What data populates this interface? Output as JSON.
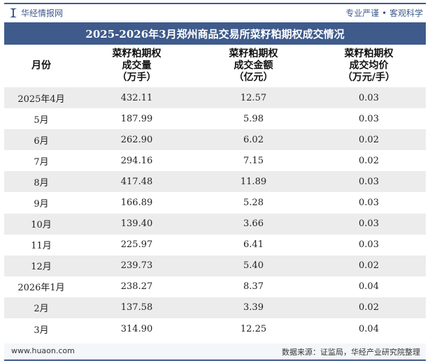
{
  "header": {
    "brand": "华经情报网",
    "slogan": "专业严谨 • 客观科学"
  },
  "chart_data": {
    "type": "table",
    "title": "2025-2026年3月郑州商品交易所菜籽粕期权成交情况",
    "columns": [
      "月份",
      "菜籽粕期权\n成交量\n（万手）",
      "菜籽粕期权\n成交金额\n（亿元）",
      "菜籽粕期权\n成交均价\n（万元/手）"
    ],
    "rows": [
      [
        "2025年4月",
        "432.11",
        "12.57",
        "0.03"
      ],
      [
        "5月",
        "187.99",
        "5.98",
        "0.03"
      ],
      [
        "6月",
        "262.90",
        "6.02",
        "0.02"
      ],
      [
        "7月",
        "294.16",
        "7.15",
        "0.02"
      ],
      [
        "8月",
        "417.48",
        "11.89",
        "0.03"
      ],
      [
        "9月",
        "166.89",
        "5.28",
        "0.03"
      ],
      [
        "10月",
        "139.40",
        "3.66",
        "0.03"
      ],
      [
        "11月",
        "225.97",
        "6.41",
        "0.03"
      ],
      [
        "12月",
        "239.73",
        "5.40",
        "0.02"
      ],
      [
        "2026年1月",
        "238.27",
        "8.37",
        "0.04"
      ],
      [
        "2月",
        "137.58",
        "3.39",
        "0.02"
      ],
      [
        "3月",
        "314.90",
        "12.25",
        "0.04"
      ]
    ]
  },
  "footer": {
    "website": "www.huaon.com",
    "source": "数据来源：证监局，华经产业研究院整理"
  },
  "colors": {
    "accent": "#3f5b8c",
    "row_alt": "#ececec"
  }
}
